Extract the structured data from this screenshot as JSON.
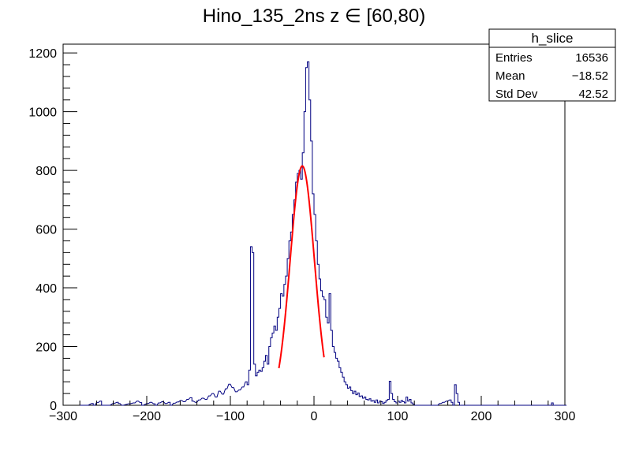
{
  "chart_data": {
    "type": "bar",
    "style": "step-histogram",
    "title": "Hino_135_2ns z  ∈ [60,80)",
    "xlabel": "",
    "ylabel": "",
    "xlim": [
      -300,
      300
    ],
    "ylim": [
      0,
      1230
    ],
    "xticks": [
      -300,
      -200,
      -100,
      0,
      100,
      200,
      300
    ],
    "xtick_labels": [
      "−300",
      "−200",
      "−100",
      "0",
      "100",
      "200",
      "300"
    ],
    "yticks": [
      0,
      200,
      400,
      600,
      800,
      1000,
      1200
    ],
    "ytick_labels": [
      "0",
      "200",
      "400",
      "600",
      "800",
      "1000",
      "1200"
    ],
    "bin_width": 2,
    "line_color": "#000080",
    "fit_color": "#ff0000",
    "histogram": {
      "points": [
        [
          -280,
          0
        ],
        [
          -272,
          0
        ],
        [
          -266,
          6
        ],
        [
          -264,
          0
        ],
        [
          -260,
          9
        ],
        [
          -256,
          14
        ],
        [
          -254,
          0
        ],
        [
          -246,
          0
        ],
        [
          -240,
          7
        ],
        [
          -236,
          10
        ],
        [
          -234,
          6
        ],
        [
          -230,
          0
        ],
        [
          -222,
          5
        ],
        [
          -216,
          8
        ],
        [
          -212,
          14
        ],
        [
          -208,
          9
        ],
        [
          -206,
          0
        ],
        [
          -200,
          6
        ],
        [
          -196,
          10
        ],
        [
          -192,
          5
        ],
        [
          -190,
          0
        ],
        [
          -186,
          8
        ],
        [
          -182,
          12
        ],
        [
          -178,
          6
        ],
        [
          -174,
          10
        ],
        [
          -172,
          0
        ],
        [
          -168,
          7
        ],
        [
          -164,
          11
        ],
        [
          -160,
          16
        ],
        [
          -156,
          12
        ],
        [
          -152,
          20
        ],
        [
          -148,
          26
        ],
        [
          -146,
          14
        ],
        [
          -142,
          10
        ],
        [
          -138,
          18
        ],
        [
          -134,
          24
        ],
        [
          -130,
          20
        ],
        [
          -126,
          32
        ],
        [
          -122,
          40
        ],
        [
          -118,
          28
        ],
        [
          -114,
          48
        ],
        [
          -110,
          38
        ],
        [
          -106,
          56
        ],
        [
          -102,
          72
        ],
        [
          -98,
          60
        ],
        [
          -94,
          46
        ],
        [
          -90,
          52
        ],
        [
          -86,
          62
        ],
        [
          -82,
          80
        ],
        [
          -80,
          70
        ],
        [
          -78,
          120
        ],
        [
          -76,
          540
        ],
        [
          -74,
          520
        ],
        [
          -72,
          140
        ],
        [
          -70,
          100
        ],
        [
          -68,
          112
        ],
        [
          -66,
          120
        ],
        [
          -64,
          115
        ],
        [
          -62,
          128
        ],
        [
          -60,
          150
        ],
        [
          -58,
          170
        ],
        [
          -56,
          140
        ],
        [
          -54,
          200
        ],
        [
          -52,
          230
        ],
        [
          -50,
          246
        ],
        [
          -48,
          270
        ],
        [
          -46,
          255
        ],
        [
          -44,
          300
        ],
        [
          -42,
          330
        ],
        [
          -40,
          380
        ],
        [
          -38,
          372
        ],
        [
          -36,
          412
        ],
        [
          -34,
          440
        ],
        [
          -32,
          500
        ],
        [
          -30,
          560
        ],
        [
          -28,
          590
        ],
        [
          -26,
          650
        ],
        [
          -24,
          700
        ],
        [
          -22,
          760
        ],
        [
          -20,
          790
        ],
        [
          -18,
          800
        ],
        [
          -16,
          770
        ],
        [
          -14,
          860
        ],
        [
          -12,
          1000
        ],
        [
          -10,
          1150
        ],
        [
          -8,
          1170
        ],
        [
          -6,
          1040
        ],
        [
          -4,
          900
        ],
        [
          -2,
          720
        ],
        [
          0,
          650
        ],
        [
          2,
          560
        ],
        [
          4,
          480
        ],
        [
          6,
          430
        ],
        [
          8,
          390
        ],
        [
          10,
          370
        ],
        [
          12,
          360
        ],
        [
          14,
          300
        ],
        [
          16,
          280
        ],
        [
          18,
          380
        ],
        [
          20,
          255
        ],
        [
          22,
          200
        ],
        [
          24,
          180
        ],
        [
          26,
          160
        ],
        [
          28,
          150
        ],
        [
          30,
          128
        ],
        [
          32,
          112
        ],
        [
          34,
          96
        ],
        [
          36,
          80
        ],
        [
          38,
          70
        ],
        [
          40,
          58
        ],
        [
          42,
          62
        ],
        [
          44,
          50
        ],
        [
          46,
          40
        ],
        [
          48,
          48
        ],
        [
          50,
          36
        ],
        [
          52,
          42
        ],
        [
          54,
          30
        ],
        [
          56,
          32
        ],
        [
          58,
          24
        ],
        [
          60,
          28
        ],
        [
          62,
          20
        ],
        [
          64,
          18
        ],
        [
          66,
          22
        ],
        [
          68,
          14
        ],
        [
          70,
          16
        ],
        [
          72,
          10
        ],
        [
          74,
          18
        ],
        [
          76,
          8
        ],
        [
          78,
          14
        ],
        [
          80,
          12
        ],
        [
          82,
          6
        ],
        [
          84,
          10
        ],
        [
          86,
          16
        ],
        [
          88,
          20
        ],
        [
          90,
          82
        ],
        [
          92,
          40
        ],
        [
          94,
          20
        ],
        [
          96,
          12
        ],
        [
          98,
          8
        ],
        [
          100,
          14
        ],
        [
          102,
          10
        ],
        [
          104,
          16
        ],
        [
          106,
          12
        ],
        [
          108,
          8
        ],
        [
          110,
          28
        ],
        [
          112,
          14
        ],
        [
          114,
          20
        ],
        [
          116,
          8
        ],
        [
          118,
          4
        ],
        [
          120,
          0
        ],
        [
          146,
          0
        ],
        [
          150,
          6
        ],
        [
          154,
          10
        ],
        [
          158,
          14
        ],
        [
          162,
          18
        ],
        [
          164,
          10
        ],
        [
          166,
          0
        ],
        [
          168,
          70
        ],
        [
          170,
          40
        ],
        [
          172,
          10
        ],
        [
          174,
          0
        ],
        [
          282,
          0
        ],
        [
          284,
          8
        ],
        [
          286,
          0
        ],
        [
          300,
          0
        ]
      ]
    },
    "fit": {
      "function": "gaus",
      "constant": 815,
      "mean": -14,
      "sigma": 14.5,
      "range": [
        -42,
        12
      ]
    },
    "stats_box": {
      "title": "h_slice",
      "rows": [
        {
          "label": "Entries",
          "value": "16536"
        },
        {
          "label": "Mean",
          "value": "−18.52"
        },
        {
          "label": "Std Dev",
          "value": "42.52"
        }
      ]
    }
  }
}
